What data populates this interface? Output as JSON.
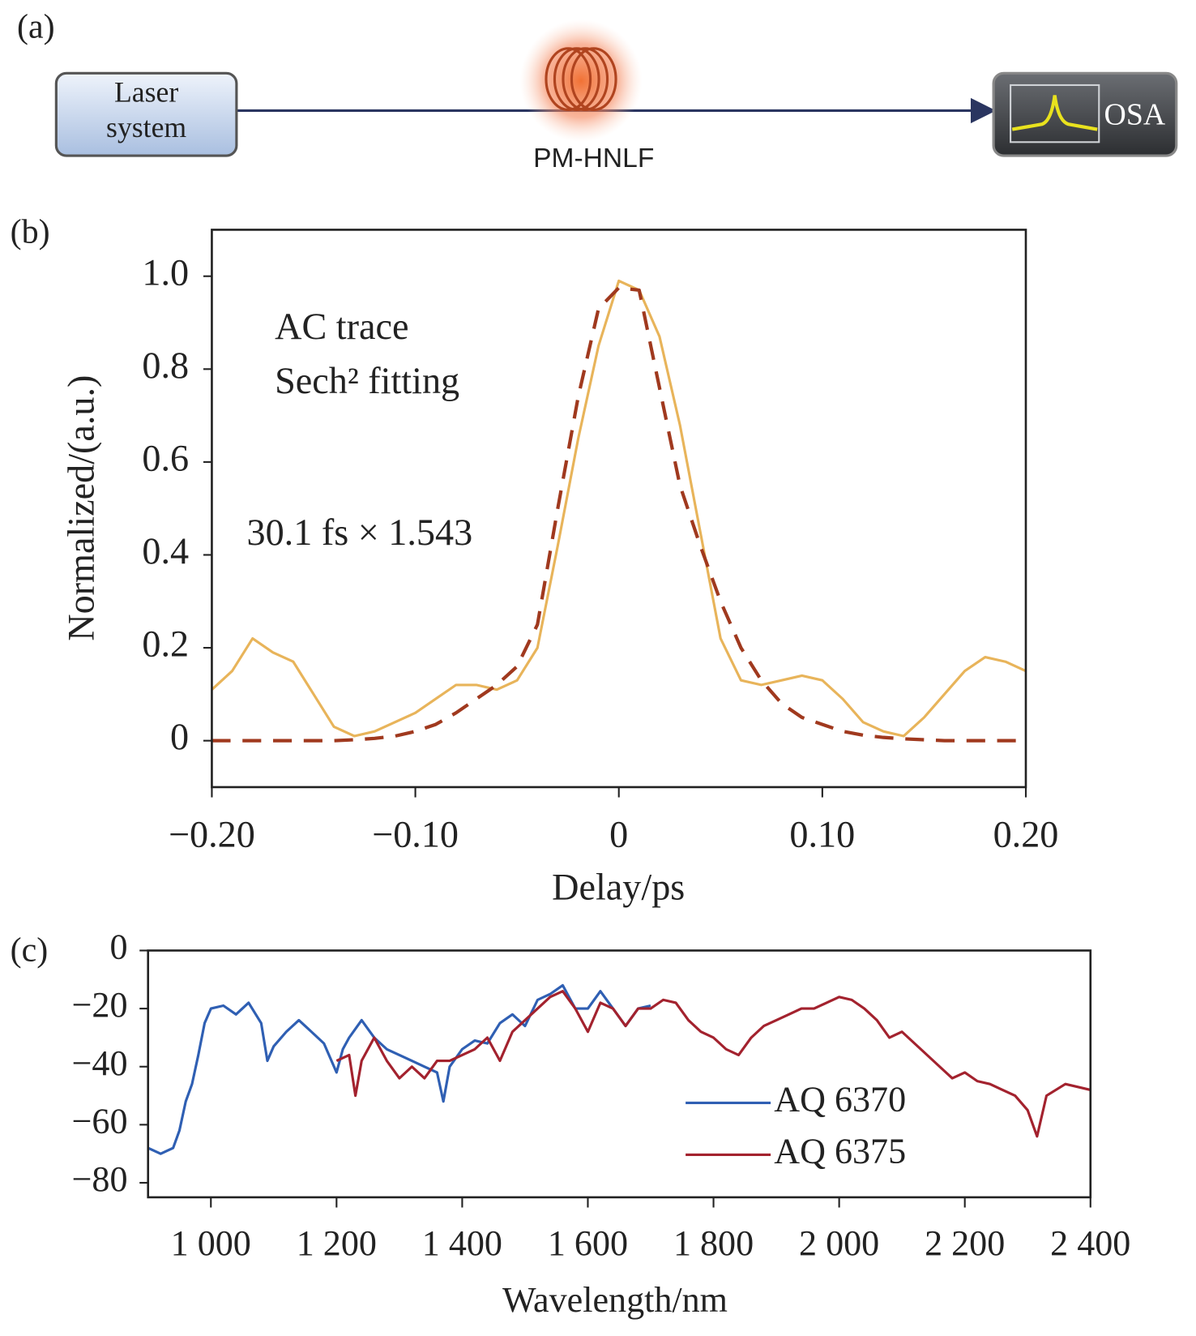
{
  "diagram": {
    "label": "(a)",
    "laser_lines": [
      "Laser",
      "system"
    ],
    "fiber": "PM-HNLF",
    "analyzer": "OSA"
  },
  "chart_data": [
    {
      "type": "line",
      "panel_label": "(b)",
      "xlabel": "Delay/ps",
      "ylabel": "Normalized/(a.u.)",
      "annotation": "30.1 fs × 1.543",
      "x": [
        -0.2,
        -0.19,
        -0.18,
        -0.17,
        -0.16,
        -0.15,
        -0.14,
        -0.13,
        -0.12,
        -0.11,
        -0.1,
        -0.09,
        -0.08,
        -0.07,
        -0.06,
        -0.05,
        -0.04,
        -0.03,
        -0.02,
        -0.01,
        0,
        0.01,
        0.02,
        0.03,
        0.04,
        0.05,
        0.06,
        0.07,
        0.08,
        0.09,
        0.1,
        0.11,
        0.12,
        0.13,
        0.14,
        0.15,
        0.16,
        0.17,
        0.18,
        0.19,
        0.2
      ],
      "series": [
        {
          "name": "AC trace",
          "color": "#e8b45a",
          "dashed": false,
          "values": [
            0.11,
            0.15,
            0.22,
            0.19,
            0.17,
            0.1,
            0.03,
            0.01,
            0.02,
            0.04,
            0.06,
            0.09,
            0.12,
            0.12,
            0.11,
            0.13,
            0.2,
            0.42,
            0.65,
            0.85,
            0.99,
            0.97,
            0.87,
            0.68,
            0.45,
            0.22,
            0.13,
            0.12,
            0.13,
            0.14,
            0.13,
            0.09,
            0.04,
            0.02,
            0.01,
            0.05,
            0.1,
            0.15,
            0.18,
            0.17,
            0.15
          ]
        },
        {
          "name": "Sech² fitting",
          "color": "#a0391e",
          "dashed": true,
          "values": [
            0,
            0,
            0,
            0,
            0,
            0,
            0,
            0.002,
            0.005,
            0.01,
            0.02,
            0.035,
            0.06,
            0.09,
            0.12,
            0.16,
            0.25,
            0.5,
            0.74,
            0.93,
            0.975,
            0.97,
            0.76,
            0.55,
            0.42,
            0.3,
            0.2,
            0.13,
            0.08,
            0.05,
            0.035,
            0.02,
            0.012,
            0.007,
            0.004,
            0.002,
            0,
            0,
            0,
            0,
            0
          ]
        }
      ],
      "xlim": [
        -0.2,
        0.2
      ],
      "ylim": [
        -0.1,
        1.1
      ],
      "xticks": [
        {
          "value": -0.2,
          "label": "−0.20"
        },
        {
          "value": -0.1,
          "label": "−0.10"
        },
        0,
        {
          "value": 0.1,
          "label": "0.10"
        },
        {
          "value": 0.2,
          "label": "0.20"
        }
      ],
      "yticks": [
        0,
        0.2,
        0.4,
        0.6,
        0.8,
        {
          "value": 1,
          "label": "1.0"
        }
      ]
    },
    {
      "type": "line",
      "panel_label": "(c)",
      "xlabel": "Wavelength/nm",
      "series": [
        {
          "name": "AQ 6370",
          "color": "#2f5fb3",
          "dashed": false,
          "x": [
            900,
            920,
            940,
            950,
            960,
            970,
            980,
            990,
            1000,
            1020,
            1040,
            1060,
            1080,
            1090,
            1100,
            1120,
            1140,
            1160,
            1180,
            1200,
            1210,
            1220,
            1240,
            1260,
            1280,
            1300,
            1320,
            1340,
            1360,
            1370,
            1380,
            1400,
            1420,
            1440,
            1460,
            1480,
            1500,
            1520,
            1540,
            1560,
            1580,
            1600,
            1620,
            1640,
            1660,
            1680,
            1700
          ],
          "values": [
            -68,
            -70,
            -68,
            -62,
            -52,
            -46,
            -36,
            -25,
            -20,
            -19,
            -22,
            -18,
            -25,
            -38,
            -33,
            -28,
            -24,
            -28,
            -32,
            -42,
            -34,
            -30,
            -24,
            -30,
            -34,
            -36,
            -38,
            -40,
            -42,
            -52,
            -40,
            -34,
            -31,
            -32,
            -25,
            -22,
            -26,
            -17,
            -15,
            -12,
            -20,
            -20,
            -14,
            -20,
            -26,
            -20,
            -19
          ]
        },
        {
          "name": "AQ 6375",
          "color": "#a3222e",
          "dashed": false,
          "x": [
            1200,
            1220,
            1230,
            1240,
            1260,
            1280,
            1300,
            1320,
            1340,
            1360,
            1380,
            1400,
            1420,
            1440,
            1460,
            1480,
            1500,
            1520,
            1540,
            1560,
            1580,
            1600,
            1620,
            1640,
            1660,
            1680,
            1700,
            1720,
            1740,
            1760,
            1780,
            1800,
            1820,
            1840,
            1860,
            1880,
            1900,
            1920,
            1940,
            1960,
            1980,
            2000,
            2020,
            2040,
            2060,
            2080,
            2100,
            2120,
            2140,
            2160,
            2180,
            2200,
            2220,
            2240,
            2260,
            2280,
            2300,
            2315,
            2330,
            2360,
            2400
          ],
          "values": [
            -38,
            -36,
            -50,
            -38,
            -30,
            -38,
            -44,
            -40,
            -44,
            -38,
            -38,
            -36,
            -34,
            -30,
            -38,
            -28,
            -24,
            -20,
            -16,
            -14,
            -20,
            -28,
            -18,
            -20,
            -26,
            -20,
            -20,
            -17,
            -18,
            -24,
            -28,
            -30,
            -34,
            -36,
            -30,
            -26,
            -24,
            -22,
            -20,
            -20,
            -18,
            -16,
            -17,
            -20,
            -24,
            -30,
            -28,
            -32,
            -36,
            -40,
            -44,
            -42,
            -45,
            -46,
            -48,
            -50,
            -55,
            -64,
            -50,
            -46,
            -48
          ]
        }
      ],
      "xlim": [
        900,
        2400
      ],
      "ylim": [
        -85,
        0
      ],
      "xticks": [
        {
          "value": 1000,
          "label": "1 000"
        },
        {
          "value": 1200,
          "label": "1 200"
        },
        {
          "value": 1400,
          "label": "1 400"
        },
        {
          "value": 1600,
          "label": "1 600"
        },
        {
          "value": 1800,
          "label": "1 800"
        },
        {
          "value": 2000,
          "label": "2 000"
        },
        {
          "value": 2200,
          "label": "2 200"
        },
        {
          "value": 2400,
          "label": "2 400"
        }
      ],
      "yticks": [
        {
          "value": -80,
          "label": "−80"
        },
        {
          "value": -60,
          "label": "−60"
        },
        {
          "value": -40,
          "label": "−40"
        },
        {
          "value": -20,
          "label": "−20"
        },
        0
      ]
    }
  ]
}
